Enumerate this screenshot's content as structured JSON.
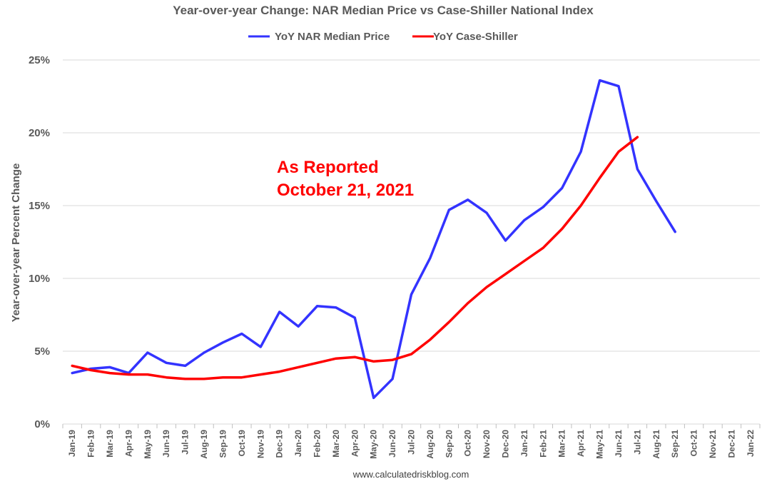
{
  "chart_data": {
    "type": "line",
    "title": "Year-over-year Change: NAR Median Price vs Case-Shiller National Index",
    "ylabel": "Year-over-year Percent Change",
    "xlabel": "",
    "ylim": [
      0,
      25
    ],
    "yticks": [
      "0%",
      "5%",
      "10%",
      "15%",
      "20%",
      "25%"
    ],
    "ytick_values": [
      0,
      5,
      10,
      15,
      20,
      25
    ],
    "grid": true,
    "legend_position": "top-center",
    "categories": [
      "Jan-19",
      "Feb-19",
      "Mar-19",
      "Apr-19",
      "May-19",
      "Jun-19",
      "Jul-19",
      "Aug-19",
      "Sep-19",
      "Oct-19",
      "Nov-19",
      "Dec-19",
      "Jan-20",
      "Feb-20",
      "Mar-20",
      "Apr-20",
      "May-20",
      "Jun-20",
      "Jul-20",
      "Aug-20",
      "Sep-20",
      "Oct-20",
      "Nov-20",
      "Dec-20",
      "Jan-21",
      "Feb-21",
      "Mar-21",
      "Apr-21",
      "May-21",
      "Jun-21",
      "Jul-21",
      "Aug-21",
      "Sep-21",
      "Oct-21",
      "Nov-21",
      "Dec-21",
      "Jan-22"
    ],
    "series": [
      {
        "name": "YoY NAR Median Price",
        "color": "#3333ff",
        "values": [
          3.5,
          3.8,
          3.9,
          3.5,
          4.9,
          4.2,
          4.0,
          4.9,
          5.6,
          6.2,
          5.3,
          7.7,
          6.7,
          8.1,
          8.0,
          7.3,
          1.8,
          3.1,
          8.9,
          11.4,
          14.7,
          15.4,
          14.5,
          12.6,
          14.0,
          14.9,
          16.2,
          18.7,
          23.6,
          23.2,
          17.5,
          15.3,
          13.2,
          null,
          null,
          null,
          null
        ]
      },
      {
        "name": "YoY Case-Shiller",
        "color": "#ff0000",
        "values": [
          4.0,
          3.7,
          3.5,
          3.4,
          3.4,
          3.2,
          3.1,
          3.1,
          3.2,
          3.2,
          3.4,
          3.6,
          3.9,
          4.2,
          4.5,
          4.6,
          4.3,
          4.4,
          4.8,
          5.8,
          7.0,
          8.3,
          9.4,
          10.3,
          11.2,
          12.1,
          13.4,
          15.0,
          16.9,
          18.7,
          19.7,
          null,
          null,
          null,
          null,
          null,
          null
        ]
      }
    ],
    "annotations": [
      {
        "text": "As Reported",
        "color": "#ff0000"
      },
      {
        "text": "October 21, 2021",
        "color": "#ff0000"
      }
    ],
    "source": "www.calculatedriskblog.com"
  }
}
